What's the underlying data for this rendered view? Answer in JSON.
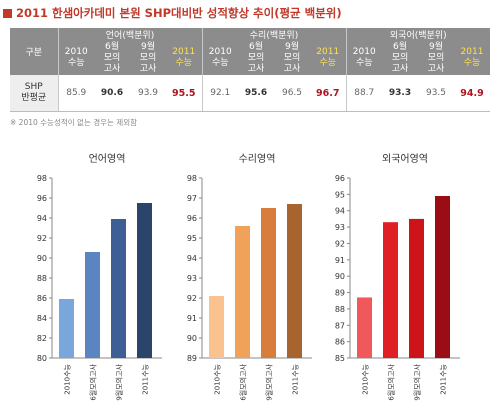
{
  "title": "2011 한샘아카데미 본원 SHP대비반 성적향상 추이(평균 백분위)",
  "table": {
    "corner": "구분",
    "groups": [
      "언어(백분위)",
      "수리(백분위)",
      "외국어(백분위)"
    ],
    "subheads": [
      [
        "2010",
        "수능"
      ],
      [
        "6월",
        "모의",
        "고사"
      ],
      [
        "9월",
        "모의",
        "고사"
      ],
      [
        "2011",
        "수능"
      ],
      [
        "2010",
        "수능"
      ],
      [
        "6월",
        "모의",
        "고사"
      ],
      [
        "9월",
        "모의",
        "고사"
      ],
      [
        "2011",
        "수능"
      ],
      [
        "2010",
        "수능"
      ],
      [
        "6월",
        "모의",
        "고사"
      ],
      [
        "9월",
        "모의",
        "고사"
      ],
      [
        "2011",
        "수능"
      ]
    ],
    "row_label": [
      "SHP",
      "반평균"
    ],
    "values": [
      "85.9",
      "90.6",
      "93.9",
      "95.5",
      "92.1",
      "95.6",
      "96.5",
      "96.7",
      "88.7",
      "93.3",
      "93.5",
      "94.9"
    ]
  },
  "note": "※ 2010 수능성적이 없는 경우는 제외함",
  "chart_data": [
    {
      "type": "bar",
      "title": "언어영역",
      "categories": [
        "2010수능",
        "6월모의고사",
        "9월모의고사",
        "2011수능"
      ],
      "values": [
        85.9,
        90.6,
        93.9,
        95.5
      ],
      "ylim": [
        80,
        98
      ],
      "yticks": [
        80,
        82,
        84,
        86,
        88,
        90,
        92,
        94,
        96,
        98
      ],
      "colors": [
        "#7aa7db",
        "#5a85c0",
        "#3d5f96",
        "#2b4469"
      ],
      "grid": false
    },
    {
      "type": "bar",
      "title": "수리영역",
      "categories": [
        "2010수능",
        "6월모의고사",
        "9월모의고사",
        "2011수능"
      ],
      "values": [
        92.1,
        95.6,
        96.5,
        96.7
      ],
      "ylim": [
        89,
        98
      ],
      "yticks": [
        89,
        90,
        91,
        92,
        93,
        94,
        95,
        96,
        97,
        98
      ],
      "colors": [
        "#f9c28e",
        "#f0a25a",
        "#d97d3c",
        "#a8642f"
      ],
      "grid": false
    },
    {
      "type": "bar",
      "title": "외국어영역",
      "categories": [
        "2010수능",
        "6월모의고사",
        "9월모의고사",
        "2011수능"
      ],
      "values": [
        88.7,
        93.3,
        93.5,
        94.9
      ],
      "ylim": [
        85,
        96
      ],
      "yticks": [
        85,
        86,
        87,
        88,
        89,
        90,
        91,
        92,
        93,
        94,
        95,
        96
      ],
      "colors": [
        "#f0595b",
        "#e01f25",
        "#cd1519",
        "#9a0d14"
      ],
      "grid": false
    }
  ]
}
